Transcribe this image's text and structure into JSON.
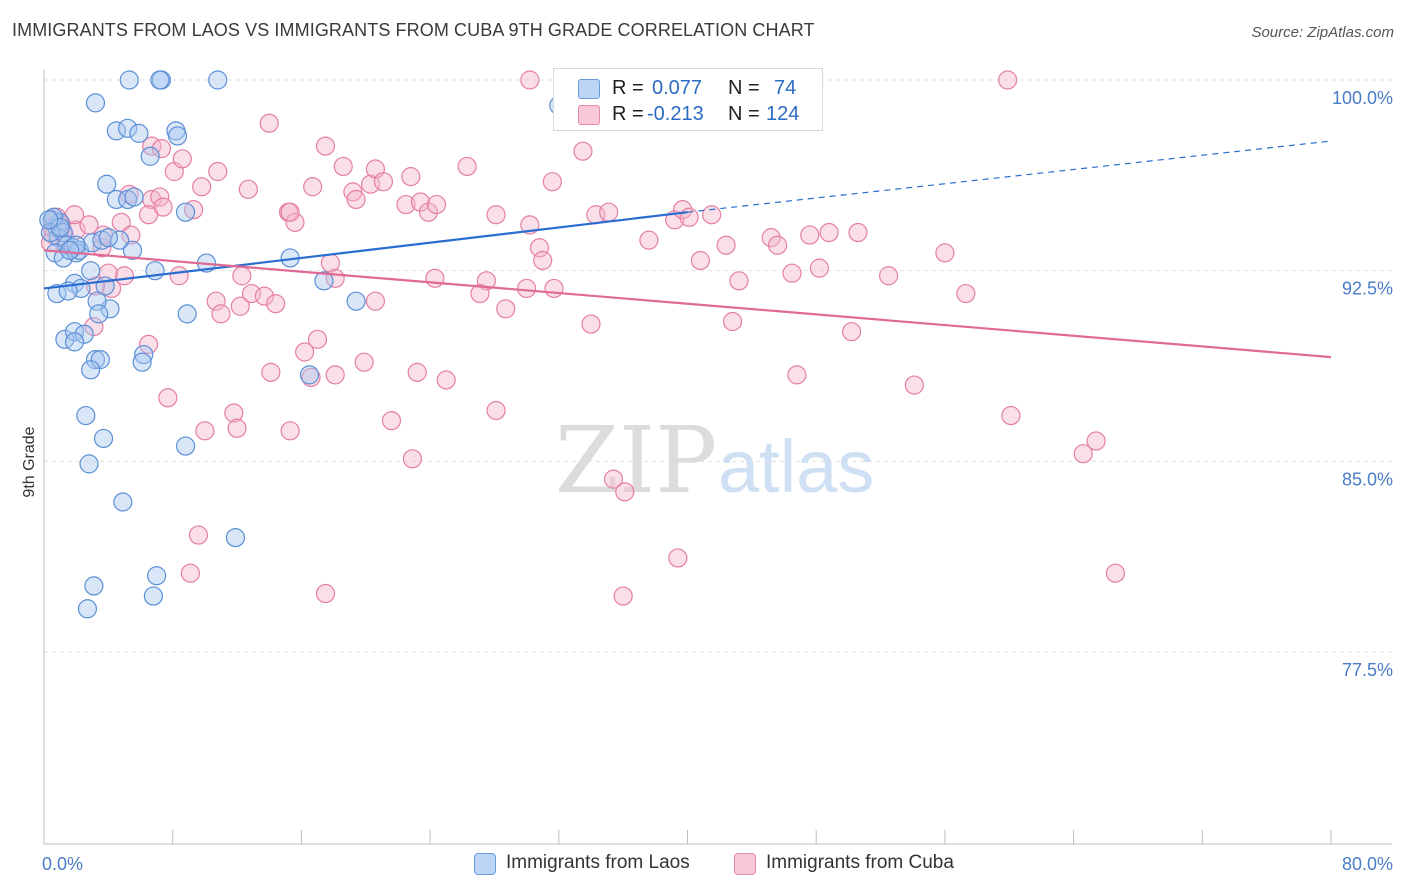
{
  "header": {
    "title": "IMMIGRANTS FROM LAOS VS IMMIGRANTS FROM CUBA 9TH GRADE CORRELATION CHART",
    "source": "Source: ZipAtlas.com"
  },
  "watermark": {
    "part1": "ZIP",
    "part2": "atlas"
  },
  "colors": {
    "blue_fill": "#a9c8f0",
    "blue_stroke": "#5b8fd6",
    "blue_line": "#2a6dd0",
    "pink_fill": "#f5b6cb",
    "pink_stroke": "#e57fa3",
    "pink_line": "#e06a95",
    "tick_text": "#4a7cc7",
    "grid": "#e0e0e0"
  },
  "legend_top": {
    "rows": [
      {
        "r_label": "R =",
        "r_value": "0.077",
        "n_label": "N =",
        "n_value": "74"
      },
      {
        "r_label": "R =",
        "r_value": "-0.213",
        "n_label": "N =",
        "n_value": "124"
      }
    ]
  },
  "legend_bottom": {
    "items": [
      {
        "label": "Immigrants from Laos"
      },
      {
        "label": "Immigrants from Cuba"
      }
    ]
  },
  "chart_data": {
    "type": "scatter",
    "ylabel": "9th Grade",
    "xlabel": "",
    "xlim": [
      0,
      80
    ],
    "ylim": [
      70.0,
      101.0
    ],
    "x_ticks": [
      {
        "value": 0,
        "label": "0.0%"
      },
      {
        "value": 80,
        "label": "80.0%"
      }
    ],
    "y_ticks": [
      {
        "value": 100.0,
        "label": "100.0%"
      },
      {
        "value": 92.5,
        "label": "92.5%"
      },
      {
        "value": 85.0,
        "label": "85.0%"
      },
      {
        "value": 77.5,
        "label": "77.5%"
      }
    ],
    "grid": true,
    "legend_placement": "top-center",
    "series": [
      {
        "name": "Immigrants from Laos",
        "color": "blue",
        "r": 0.077,
        "n": 74,
        "trend": {
          "x0": 0,
          "y0": 91.8,
          "x1": 40,
          "y1": 94.8,
          "dash_to_x": 80,
          "dash_to_y": 97.6
        },
        "points": [
          [
            0.5,
            94.5
          ],
          [
            0.8,
            94.2
          ],
          [
            1.0,
            94.4
          ],
          [
            0.6,
            94.6
          ],
          [
            0.9,
            93.8
          ],
          [
            1.2,
            94.0
          ],
          [
            1.4,
            93.5
          ],
          [
            0.7,
            93.2
          ],
          [
            1.2,
            93.0
          ],
          [
            1.8,
            93.4
          ],
          [
            2.0,
            93.2
          ],
          [
            2.2,
            93.3
          ],
          [
            3.0,
            93.6
          ],
          [
            3.6,
            93.7
          ],
          [
            4.5,
            95.3
          ],
          [
            5.2,
            95.3
          ],
          [
            5.6,
            95.4
          ],
          [
            3.9,
            95.9
          ],
          [
            4.5,
            98.0
          ],
          [
            5.2,
            98.1
          ],
          [
            5.9,
            97.9
          ],
          [
            8.2,
            98.0
          ],
          [
            8.3,
            97.8
          ],
          [
            6.6,
            97.0
          ],
          [
            3.2,
            99.1
          ],
          [
            5.3,
            100.0
          ],
          [
            7.3,
            100.0
          ],
          [
            7.2,
            100.0
          ],
          [
            10.8,
            100.0
          ],
          [
            8.8,
            94.8
          ],
          [
            10.1,
            92.8
          ],
          [
            6.9,
            92.5
          ],
          [
            2.9,
            92.5
          ],
          [
            1.9,
            92.0
          ],
          [
            2.3,
            91.8
          ],
          [
            3.8,
            91.9
          ],
          [
            4.1,
            91.0
          ],
          [
            3.3,
            91.3
          ],
          [
            3.4,
            90.8
          ],
          [
            0.8,
            91.6
          ],
          [
            1.5,
            91.7
          ],
          [
            1.3,
            89.8
          ],
          [
            1.9,
            90.1
          ],
          [
            2.5,
            90.0
          ],
          [
            1.9,
            89.7
          ],
          [
            3.2,
            89.0
          ],
          [
            3.5,
            89.0
          ],
          [
            6.2,
            89.2
          ],
          [
            6.1,
            88.9
          ],
          [
            2.9,
            88.6
          ],
          [
            8.9,
            90.8
          ],
          [
            5.5,
            93.3
          ],
          [
            4.7,
            93.7
          ],
          [
            2.6,
            86.8
          ],
          [
            3.7,
            85.9
          ],
          [
            8.8,
            85.6
          ],
          [
            2.8,
            84.9
          ],
          [
            4.9,
            83.4
          ],
          [
            11.9,
            82.0
          ],
          [
            7.0,
            80.5
          ],
          [
            6.8,
            79.7
          ],
          [
            3.1,
            80.1
          ],
          [
            2.7,
            79.2
          ],
          [
            15.3,
            93.0
          ],
          [
            17.4,
            92.1
          ],
          [
            19.4,
            91.3
          ],
          [
            16.5,
            88.4
          ],
          [
            32.0,
            99.0
          ],
          [
            0.4,
            94.0
          ],
          [
            1.0,
            94.2
          ],
          [
            0.3,
            94.5
          ],
          [
            4.0,
            93.8
          ],
          [
            2.0,
            93.5
          ],
          [
            1.6,
            93.3
          ]
        ]
      },
      {
        "name": "Immigrants from Cuba",
        "color": "pink",
        "r": -0.213,
        "n": 124,
        "trend": {
          "x0": 0,
          "y0": 93.3,
          "x1": 80,
          "y1": 89.1
        },
        "points": [
          [
            0.5,
            94.2
          ],
          [
            0.8,
            94.6
          ],
          [
            1.1,
            94.3
          ],
          [
            0.6,
            93.9
          ],
          [
            1.3,
            93.8
          ],
          [
            2.0,
            94.1
          ],
          [
            2.8,
            94.3
          ],
          [
            1.9,
            94.7
          ],
          [
            0.4,
            93.6
          ],
          [
            3.6,
            93.4
          ],
          [
            4.8,
            94.4
          ],
          [
            3.7,
            93.9
          ],
          [
            5.4,
            93.9
          ],
          [
            6.7,
            95.3
          ],
          [
            7.2,
            95.4
          ],
          [
            7.4,
            95.0
          ],
          [
            6.5,
            94.7
          ],
          [
            5.3,
            95.5
          ],
          [
            6.7,
            97.4
          ],
          [
            7.3,
            97.3
          ],
          [
            8.1,
            96.4
          ],
          [
            8.6,
            96.9
          ],
          [
            9.3,
            94.9
          ],
          [
            9.8,
            95.8
          ],
          [
            10.8,
            96.4
          ],
          [
            12.7,
            95.7
          ],
          [
            14.0,
            98.3
          ],
          [
            15.2,
            94.8
          ],
          [
            15.6,
            94.4
          ],
          [
            15.3,
            94.8
          ],
          [
            16.7,
            95.8
          ],
          [
            17.5,
            97.4
          ],
          [
            18.6,
            96.6
          ],
          [
            19.2,
            95.6
          ],
          [
            19.4,
            95.3
          ],
          [
            20.3,
            95.9
          ],
          [
            20.6,
            96.5
          ],
          [
            21.1,
            96.0
          ],
          [
            22.5,
            95.1
          ],
          [
            22.8,
            96.2
          ],
          [
            23.4,
            95.2
          ],
          [
            23.9,
            94.8
          ],
          [
            24.4,
            95.1
          ],
          [
            26.3,
            96.6
          ],
          [
            28.1,
            94.7
          ],
          [
            30.2,
            94.3
          ],
          [
            30.8,
            93.4
          ],
          [
            31.0,
            92.9
          ],
          [
            31.6,
            96.0
          ],
          [
            33.5,
            97.2
          ],
          [
            34.3,
            94.7
          ],
          [
            35.1,
            94.8
          ],
          [
            37.6,
            93.7
          ],
          [
            39.2,
            94.5
          ],
          [
            39.7,
            94.9
          ],
          [
            40.1,
            94.6
          ],
          [
            40.8,
            92.9
          ],
          [
            41.5,
            94.7
          ],
          [
            42.4,
            93.5
          ],
          [
            43.2,
            92.1
          ],
          [
            45.2,
            93.8
          ],
          [
            45.6,
            93.5
          ],
          [
            46.5,
            92.4
          ],
          [
            47.6,
            93.9
          ],
          [
            48.2,
            92.6
          ],
          [
            48.8,
            94.0
          ],
          [
            50.6,
            94.0
          ],
          [
            52.5,
            92.3
          ],
          [
            56.0,
            93.2
          ],
          [
            57.3,
            91.6
          ],
          [
            5.0,
            92.3
          ],
          [
            4.0,
            92.4
          ],
          [
            4.2,
            91.8
          ],
          [
            3.2,
            91.9
          ],
          [
            8.4,
            92.3
          ],
          [
            12.3,
            92.3
          ],
          [
            10.7,
            91.3
          ],
          [
            11.0,
            90.8
          ],
          [
            12.2,
            91.1
          ],
          [
            12.9,
            91.6
          ],
          [
            13.7,
            91.5
          ],
          [
            14.4,
            91.2
          ],
          [
            17.8,
            92.8
          ],
          [
            18.1,
            92.2
          ],
          [
            20.6,
            91.3
          ],
          [
            24.3,
            92.2
          ],
          [
            27.5,
            92.1
          ],
          [
            27.1,
            91.6
          ],
          [
            28.7,
            91.0
          ],
          [
            30.0,
            91.8
          ],
          [
            31.7,
            91.8
          ],
          [
            34.0,
            90.4
          ],
          [
            42.8,
            90.5
          ],
          [
            50.2,
            90.1
          ],
          [
            46.8,
            88.4
          ],
          [
            54.1,
            88.0
          ],
          [
            3.1,
            90.3
          ],
          [
            6.5,
            89.6
          ],
          [
            17.0,
            89.8
          ],
          [
            16.2,
            89.3
          ],
          [
            18.1,
            88.4
          ],
          [
            19.9,
            88.9
          ],
          [
            16.6,
            88.3
          ],
          [
            23.2,
            88.5
          ],
          [
            25.0,
            88.2
          ],
          [
            14.1,
            88.5
          ],
          [
            7.7,
            87.5
          ],
          [
            11.8,
            86.9
          ],
          [
            12.0,
            86.3
          ],
          [
            15.3,
            86.2
          ],
          [
            21.6,
            86.6
          ],
          [
            22.9,
            85.1
          ],
          [
            28.1,
            87.0
          ],
          [
            35.4,
            84.3
          ],
          [
            36.1,
            83.8
          ],
          [
            10.0,
            86.2
          ],
          [
            9.6,
            82.1
          ],
          [
            9.1,
            80.6
          ],
          [
            17.5,
            79.8
          ],
          [
            36.0,
            79.7
          ],
          [
            39.4,
            81.2
          ],
          [
            60.1,
            86.8
          ],
          [
            64.6,
            85.3
          ],
          [
            65.4,
            85.8
          ],
          [
            66.6,
            80.6
          ],
          [
            59.9,
            100.0
          ],
          [
            30.2,
            100.0
          ]
        ]
      }
    ]
  }
}
